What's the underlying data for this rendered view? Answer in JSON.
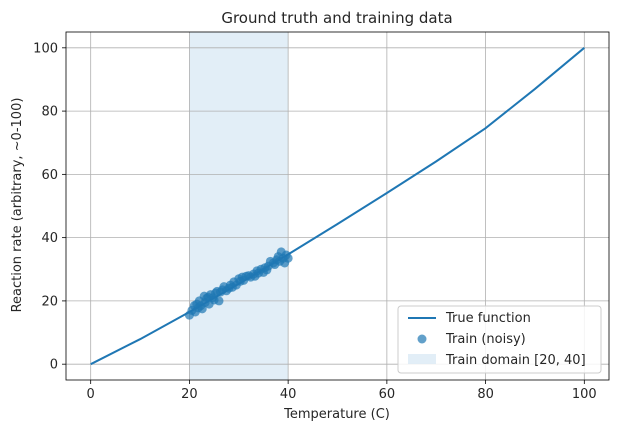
{
  "chart_data": {
    "type": "line",
    "title": "Ground truth and training data",
    "xlabel": "Temperature (C)",
    "ylabel": "Reaction rate (arbitrary, ~0-100)",
    "xlim": [
      -5,
      105
    ],
    "ylim": [
      -5,
      105
    ],
    "xticks": [
      0,
      20,
      40,
      60,
      80,
      100
    ],
    "yticks": [
      0,
      20,
      40,
      60,
      80,
      100
    ],
    "grid": true,
    "legend_position": "lower-right",
    "colors": {
      "line": "#1f77b4",
      "points": "#1f77b4",
      "domain": "#cfe3f2",
      "grid": "#b0b0b0"
    },
    "shaded_region": {
      "name": "Train domain [20, 40]",
      "x": [
        20,
        40
      ]
    },
    "series": [
      {
        "name": "True function",
        "type": "line",
        "x": [
          0,
          10,
          20,
          30,
          40,
          50,
          60,
          70,
          80,
          90,
          100
        ],
        "y": [
          0,
          7.9,
          16.5,
          25.4,
          34.7,
          44.3,
          54.1,
          64.1,
          74.6,
          87.0,
          100.0
        ]
      },
      {
        "name": "Train (noisy)",
        "type": "scatter",
        "x": [
          20.0,
          20.5,
          21.0,
          21.2,
          21.5,
          21.8,
          22.0,
          22.3,
          22.6,
          23.0,
          23.2,
          23.5,
          23.8,
          24.0,
          24.3,
          24.7,
          25.0,
          25.3,
          25.6,
          26.0,
          26.3,
          26.7,
          27.0,
          27.5,
          28.0,
          28.3,
          28.7,
          29.0,
          29.5,
          30.0,
          30.3,
          30.7,
          31.0,
          31.5,
          32.0,
          32.4,
          33.0,
          33.3,
          33.7,
          34.0,
          34.5,
          35.0,
          35.3,
          35.7,
          36.0,
          36.4,
          37.0,
          37.3,
          37.7,
          38.0,
          38.3,
          38.6,
          39.0,
          39.3,
          39.6,
          40.0
        ],
        "y": [
          15.5,
          17.0,
          18.5,
          16.5,
          19.0,
          17.8,
          20.0,
          18.5,
          17.5,
          21.5,
          19.5,
          20.8,
          21.2,
          19.0,
          22.0,
          21.0,
          20.3,
          22.5,
          23.0,
          20.0,
          22.8,
          23.5,
          24.5,
          23.2,
          24.0,
          25.0,
          24.3,
          26.0,
          25.0,
          27.0,
          26.2,
          27.5,
          26.5,
          27.8,
          28.0,
          27.5,
          28.5,
          27.8,
          29.5,
          28.8,
          30.0,
          29.0,
          30.5,
          29.8,
          31.0,
          32.5,
          32.0,
          31.5,
          33.0,
          34.0,
          32.5,
          35.5,
          33.5,
          32.0,
          34.5,
          33.5
        ]
      }
    ]
  }
}
